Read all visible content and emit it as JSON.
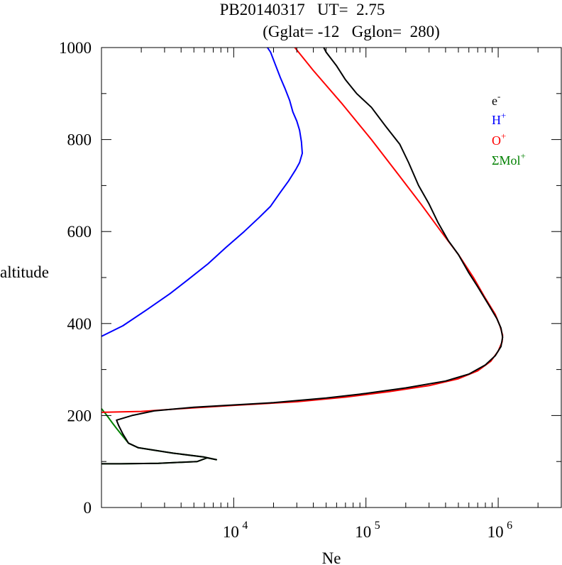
{
  "chart_data": {
    "type": "line",
    "title_line1": "PB20140317   UT=  2.75",
    "title_line2": "(Gglat= -12   Gglon=  280)",
    "xlabel": "Ne",
    "ylabel": "altitude",
    "x_scale": "log",
    "xlim": [
      1000,
      3000000
    ],
    "ylim": [
      0,
      1000
    ],
    "x_ticks": [
      {
        "value": 10000,
        "base": "10",
        "exp": "4"
      },
      {
        "value": 100000,
        "base": "10",
        "exp": "5"
      },
      {
        "value": 1000000,
        "base": "10",
        "exp": "6"
      }
    ],
    "y_ticks": [
      {
        "value": 0,
        "label": "0"
      },
      {
        "value": 200,
        "label": "200"
      },
      {
        "value": 400,
        "label": "400"
      },
      {
        "value": 600,
        "label": "600"
      },
      {
        "value": 800,
        "label": "800"
      },
      {
        "value": 1000,
        "label": "1000"
      }
    ],
    "grid": false,
    "legend_position": "top-right",
    "series": [
      {
        "name": "e",
        "sup": "-",
        "color": "#000000",
        "points": [
          [
            1000,
            95
          ],
          [
            1400,
            95
          ],
          [
            2700,
            96
          ],
          [
            5300,
            100
          ],
          [
            6300,
            108
          ],
          [
            7400,
            104
          ],
          [
            5900,
            110
          ],
          [
            3500,
            118
          ],
          [
            1900,
            130
          ],
          [
            1600,
            140
          ],
          [
            1450,
            160
          ],
          [
            1350,
            178
          ],
          [
            1300,
            190
          ],
          [
            1700,
            200
          ],
          [
            2500,
            210
          ],
          [
            5000,
            218
          ],
          [
            20000,
            228
          ],
          [
            50000,
            238
          ],
          [
            100000,
            248
          ],
          [
            200000,
            260
          ],
          [
            400000,
            275
          ],
          [
            600000,
            290
          ],
          [
            800000,
            310
          ],
          [
            950000,
            330
          ],
          [
            1050000,
            350
          ],
          [
            1080000,
            370
          ],
          [
            1050000,
            390
          ],
          [
            980000,
            410
          ],
          [
            850000,
            440
          ],
          [
            700000,
            480
          ],
          [
            600000,
            510
          ],
          [
            500000,
            550
          ],
          [
            420000,
            580
          ],
          [
            350000,
            620
          ],
          [
            300000,
            660
          ],
          [
            250000,
            700
          ],
          [
            210000,
            750
          ],
          [
            180000,
            790
          ],
          [
            140000,
            830
          ],
          [
            110000,
            870
          ],
          [
            85000,
            900
          ],
          [
            70000,
            930
          ],
          [
            60000,
            960
          ],
          [
            50000,
            990
          ],
          [
            48000,
            1000
          ]
        ]
      },
      {
        "name": "H",
        "sup": "+",
        "color": "#0000ff",
        "points": [
          [
            1000,
            372
          ],
          [
            1450,
            395
          ],
          [
            2200,
            430
          ],
          [
            3300,
            465
          ],
          [
            4500,
            495
          ],
          [
            6400,
            530
          ],
          [
            8700,
            565
          ],
          [
            12000,
            600
          ],
          [
            15500,
            630
          ],
          [
            19000,
            655
          ],
          [
            22500,
            685
          ],
          [
            26000,
            710
          ],
          [
            29500,
            735
          ],
          [
            31500,
            750
          ],
          [
            33000,
            770
          ],
          [
            32500,
            795
          ],
          [
            31500,
            820
          ],
          [
            30000,
            840
          ],
          [
            28000,
            860
          ],
          [
            26500,
            885
          ],
          [
            24500,
            910
          ],
          [
            22500,
            935
          ],
          [
            20500,
            965
          ],
          [
            19000,
            990
          ],
          [
            18000,
            1000
          ]
        ]
      },
      {
        "name": "O",
        "sup": "+",
        "color": "#ff0000",
        "points": [
          [
            1000,
            207
          ],
          [
            2000,
            209
          ],
          [
            4000,
            215
          ],
          [
            10000,
            222
          ],
          [
            30000,
            230
          ],
          [
            70000,
            240
          ],
          [
            150000,
            252
          ],
          [
            300000,
            265
          ],
          [
            500000,
            280
          ],
          [
            700000,
            297
          ],
          [
            880000,
            318
          ],
          [
            1000000,
            340
          ],
          [
            1070000,
            360
          ],
          [
            1080000,
            375
          ],
          [
            1030000,
            395
          ],
          [
            950000,
            420
          ],
          [
            800000,
            455
          ],
          [
            650000,
            500
          ],
          [
            500000,
            550
          ],
          [
            370000,
            600
          ],
          [
            260000,
            660
          ],
          [
            180000,
            720
          ],
          [
            110000,
            800
          ],
          [
            65000,
            880
          ],
          [
            40000,
            950
          ],
          [
            29000,
            1000
          ]
        ]
      },
      {
        "name": "ΣMol",
        "sup": "+",
        "color": "#008000",
        "points": [
          [
            1000,
            95
          ],
          [
            1400,
            95
          ],
          [
            2700,
            96
          ],
          [
            5300,
            100
          ],
          [
            6300,
            108
          ],
          [
            7400,
            104
          ],
          [
            5900,
            110
          ],
          [
            3500,
            118
          ],
          [
            1900,
            130
          ],
          [
            1600,
            140
          ],
          [
            1450,
            155
          ],
          [
            1300,
            172
          ],
          [
            1200,
            185
          ],
          [
            1100,
            200
          ],
          [
            1000,
            215
          ]
        ]
      }
    ]
  }
}
